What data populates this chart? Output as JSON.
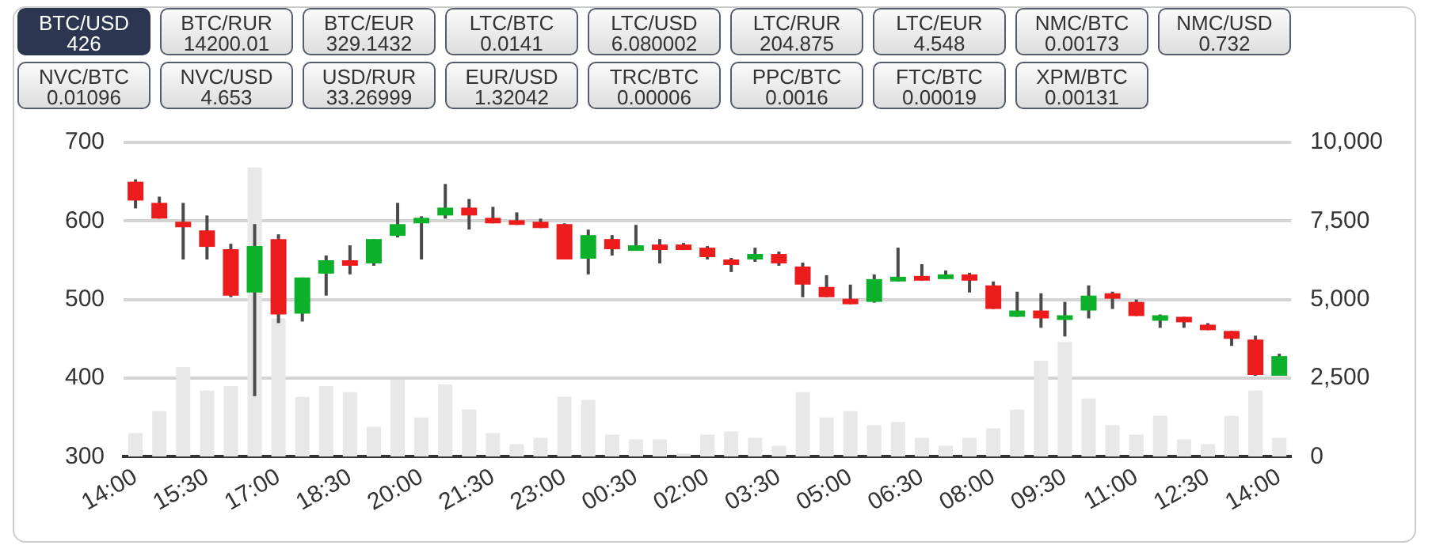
{
  "chart_data": [
    {
      "type": "other",
      "annotations": [
        "BTC/USD\n426",
        "BTC/RUR\n14200.01",
        "BTC/EUR\n329.1432",
        "LTC/BTC\n0.0141",
        "LTC/USD\n6.080002",
        "LTC/RUR\n204.875",
        "LTC/EUR\n4.548",
        "NMC/BTC\n0.00173",
        "NMC/USD\n0.732",
        "NVC/BTC\n0.01096",
        "NVC/USD\n4.653",
        "USD/RUR\n33.26999",
        "EUR/USD\n1.32042",
        "TRC/BTC\n0.00006",
        "PPC/BTC\n0.0016",
        "FTC/BTC\n0.00019",
        "XPM/BTC\n0.00131"
      ]
    },
    {
      "type": "candlestick",
      "categories": [
        "14:00",
        null,
        null,
        "15:30",
        null,
        null,
        "17:00",
        null,
        null,
        "18:30",
        null,
        null,
        "20:00",
        null,
        null,
        "21:30",
        null,
        null,
        "23:00",
        null,
        null,
        "00:30",
        null,
        null,
        "02:00",
        null,
        null,
        "03:30",
        null,
        null,
        "05:00",
        null,
        null,
        "06:30",
        null,
        null,
        "08:00",
        null,
        null,
        "09:30",
        null,
        null,
        "11:00",
        null,
        null,
        "12:30",
        null,
        null,
        "14:00"
      ],
      "ohlc": [
        [
          650,
          653,
          616,
          626
        ],
        [
          623,
          631,
          603,
          603
        ],
        [
          599,
          623,
          551,
          592
        ],
        [
          588,
          607,
          551,
          567
        ],
        [
          564,
          571,
          503,
          505
        ],
        [
          509,
          596,
          377,
          568
        ],
        [
          577,
          583,
          470,
          481
        ],
        [
          482,
          528,
          472,
          528
        ],
        [
          533,
          556,
          505,
          550
        ],
        [
          550,
          569,
          532,
          543
        ],
        [
          546,
          577,
          543,
          577
        ],
        [
          581,
          623,
          579,
          596
        ],
        [
          597,
          606,
          551,
          604
        ],
        [
          607,
          647,
          603,
          617
        ],
        [
          617,
          628,
          589,
          607
        ],
        [
          604,
          618,
          597,
          597
        ],
        [
          601,
          611,
          595,
          595
        ],
        [
          599,
          603,
          591,
          591
        ],
        [
          596,
          597,
          551,
          551
        ],
        [
          552,
          589,
          532,
          582
        ],
        [
          577,
          582,
          556,
          564
        ],
        [
          562,
          595,
          562,
          569
        ],
        [
          570,
          577,
          546,
          563
        ],
        [
          570,
          572,
          563,
          563
        ],
        [
          566,
          568,
          551,
          554
        ],
        [
          551,
          553,
          535,
          544
        ],
        [
          551,
          566,
          548,
          558
        ],
        [
          558,
          561,
          543,
          546
        ],
        [
          542,
          547,
          503,
          519
        ],
        [
          516,
          531,
          503,
          503
        ],
        [
          501,
          519,
          494,
          494
        ],
        [
          497,
          532,
          496,
          526
        ],
        [
          523,
          566,
          523,
          529
        ],
        [
          530,
          545,
          524,
          524
        ],
        [
          526,
          537,
          526,
          532
        ],
        [
          532,
          534,
          509,
          524
        ],
        [
          518,
          523,
          488,
          488
        ],
        [
          478,
          510,
          478,
          486
        ],
        [
          486,
          508,
          464,
          476
        ],
        [
          474,
          497,
          453,
          480
        ],
        [
          486,
          518,
          476,
          505
        ],
        [
          508,
          510,
          488,
          501
        ],
        [
          497,
          500,
          479,
          479
        ],
        [
          473,
          481,
          464,
          480
        ],
        [
          478,
          478,
          464,
          471
        ],
        [
          468,
          470,
          461,
          461
        ],
        [
          460,
          460,
          441,
          450
        ],
        [
          449,
          454,
          403,
          404
        ],
        [
          403,
          431,
          403,
          428
        ]
      ],
      "colors": [
        "#ec1c1c",
        "#ec1c1c",
        "#ec1c1c",
        "#ec1c1c",
        "#ec1c1c",
        "#0db02b",
        "#ec1c1c",
        "#0db02b",
        "#0db02b",
        "#ec1c1c",
        "#0db02b",
        "#0db02b",
        "#0db02b",
        "#0db02b",
        "#ec1c1c",
        "#ec1c1c",
        "#ec1c1c",
        "#ec1c1c",
        "#ec1c1c",
        "#0db02b",
        "#ec1c1c",
        "#0db02b",
        "#ec1c1c",
        "#ec1c1c",
        "#ec1c1c",
        "#ec1c1c",
        "#0db02b",
        "#ec1c1c",
        "#ec1c1c",
        "#ec1c1c",
        "#ec1c1c",
        "#0db02b",
        "#0db02b",
        "#ec1c1c",
        "#0db02b",
        "#ec1c1c",
        "#ec1c1c",
        "#0db02b",
        "#ec1c1c",
        "#0db02b",
        "#0db02b",
        "#ec1c1c",
        "#ec1c1c",
        "#0db02b",
        "#ec1c1c",
        "#ec1c1c",
        "#ec1c1c",
        "#ec1c1c",
        "#0db02b"
      ],
      "series": [
        {
          "type": "bar",
          "axis": "y2",
          "color": "#e8e8e8",
          "values": [
            750,
            1450,
            2850,
            2100,
            2250,
            9200,
            4400,
            1900,
            2250,
            2050,
            950,
            2450,
            1250,
            2300,
            1500,
            750,
            400,
            600,
            1900,
            1800,
            700,
            550,
            550,
            100,
            700,
            800,
            600,
            350,
            2050,
            1250,
            1450,
            1000,
            1100,
            600,
            350,
            600,
            900,
            1500,
            3050,
            3650,
            1850,
            1000,
            700,
            1300,
            550,
            400,
            1300,
            2100,
            600
          ]
        }
      ],
      "ylim": [
        300,
        700
      ],
      "yticks": [
        300,
        400,
        500,
        600,
        700
      ],
      "y2lim": [
        0,
        10000
      ],
      "y2ticks": [
        0,
        {
          "value": 2500,
          "label": "2,500"
        },
        {
          "value": 5000,
          "label": "5,000"
        },
        {
          "value": 7500,
          "label": "7,500"
        },
        {
          "value": 10000,
          "label": "10,000"
        }
      ],
      "grid": "y",
      "legend": false
    }
  ]
}
